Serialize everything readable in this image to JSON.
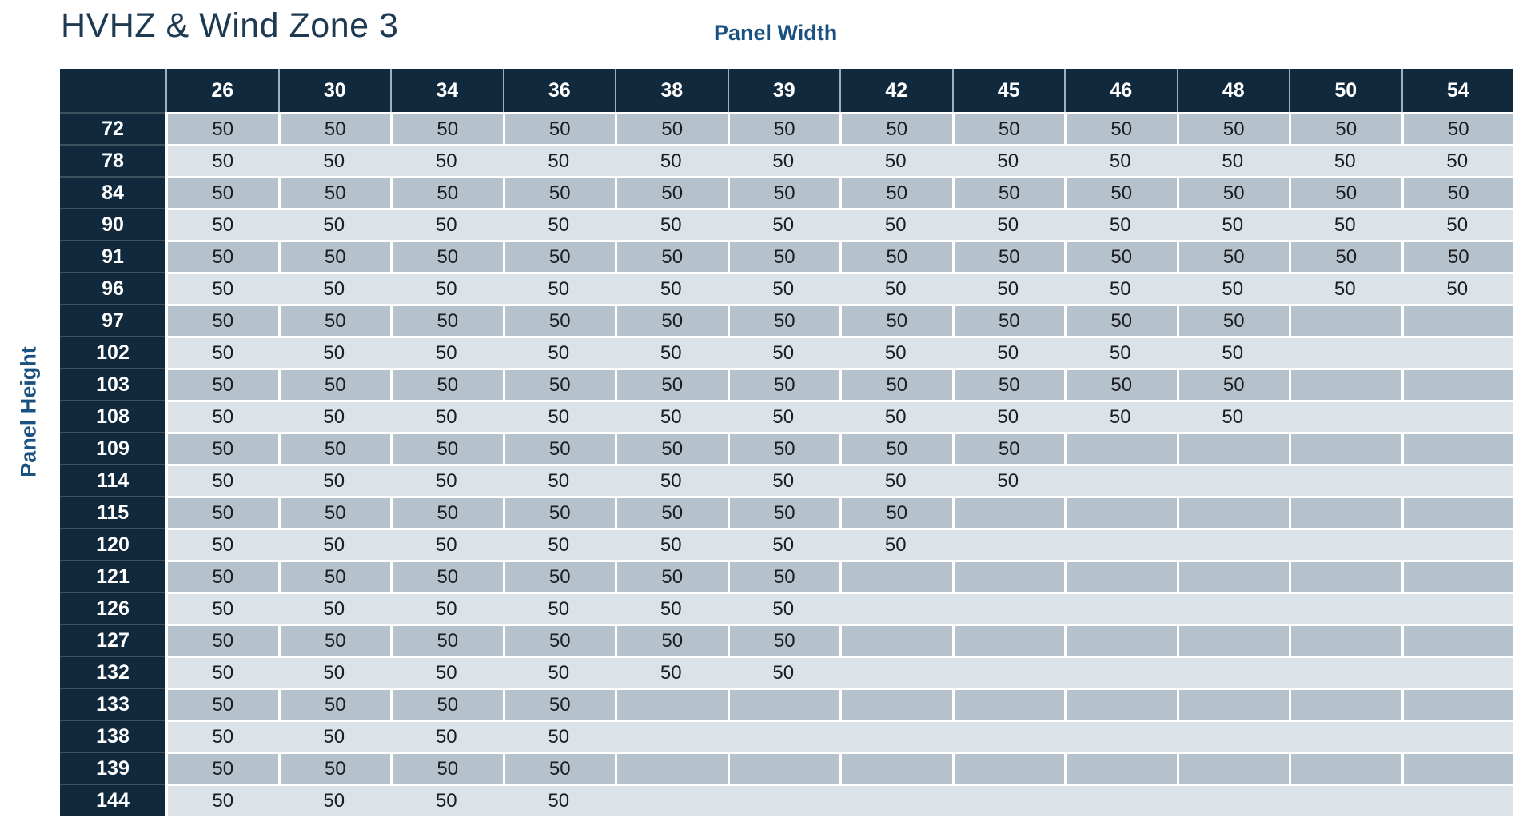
{
  "page": {
    "title": "HVHZ & Wind Zone 3",
    "column_axis_label": "Panel Width",
    "row_axis_label": "Panel Height"
  },
  "colors": {
    "header_navy": "#10293c",
    "row_stripe_dark": "#b5c2cc",
    "row_stripe_light": "#dbe2e8",
    "separator_white": "#ffffff",
    "header_separator": "#9db0bc",
    "row_header_separator": "#3f5260",
    "title_text": "#1d3a52",
    "axis_label_text": "#195180",
    "cell_text": "#1b1d1f"
  },
  "table": {
    "column_headers": [
      "26",
      "30",
      "34",
      "36",
      "38",
      "39",
      "42",
      "45",
      "46",
      "48",
      "50",
      "54"
    ],
    "rows": [
      {
        "height": "72",
        "values": [
          "50",
          "50",
          "50",
          "50",
          "50",
          "50",
          "50",
          "50",
          "50",
          "50",
          "50",
          "50"
        ]
      },
      {
        "height": "78",
        "values": [
          "50",
          "50",
          "50",
          "50",
          "50",
          "50",
          "50",
          "50",
          "50",
          "50",
          "50",
          "50"
        ]
      },
      {
        "height": "84",
        "values": [
          "50",
          "50",
          "50",
          "50",
          "50",
          "50",
          "50",
          "50",
          "50",
          "50",
          "50",
          "50"
        ]
      },
      {
        "height": "90",
        "values": [
          "50",
          "50",
          "50",
          "50",
          "50",
          "50",
          "50",
          "50",
          "50",
          "50",
          "50",
          "50"
        ]
      },
      {
        "height": "91",
        "values": [
          "50",
          "50",
          "50",
          "50",
          "50",
          "50",
          "50",
          "50",
          "50",
          "50",
          "50",
          "50"
        ]
      },
      {
        "height": "96",
        "values": [
          "50",
          "50",
          "50",
          "50",
          "50",
          "50",
          "50",
          "50",
          "50",
          "50",
          "50",
          "50"
        ]
      },
      {
        "height": "97",
        "values": [
          "50",
          "50",
          "50",
          "50",
          "50",
          "50",
          "50",
          "50",
          "50",
          "50",
          "",
          ""
        ]
      },
      {
        "height": "102",
        "values": [
          "50",
          "50",
          "50",
          "50",
          "50",
          "50",
          "50",
          "50",
          "50",
          "50",
          "",
          ""
        ]
      },
      {
        "height": "103",
        "values": [
          "50",
          "50",
          "50",
          "50",
          "50",
          "50",
          "50",
          "50",
          "50",
          "50",
          "",
          ""
        ]
      },
      {
        "height": "108",
        "values": [
          "50",
          "50",
          "50",
          "50",
          "50",
          "50",
          "50",
          "50",
          "50",
          "50",
          "",
          ""
        ]
      },
      {
        "height": "109",
        "values": [
          "50",
          "50",
          "50",
          "50",
          "50",
          "50",
          "50",
          "50",
          "",
          "",
          "",
          ""
        ]
      },
      {
        "height": "114",
        "values": [
          "50",
          "50",
          "50",
          "50",
          "50",
          "50",
          "50",
          "50",
          "",
          "",
          "",
          ""
        ]
      },
      {
        "height": "115",
        "values": [
          "50",
          "50",
          "50",
          "50",
          "50",
          "50",
          "50",
          "",
          "",
          "",
          "",
          ""
        ]
      },
      {
        "height": "120",
        "values": [
          "50",
          "50",
          "50",
          "50",
          "50",
          "50",
          "50",
          "",
          "",
          "",
          "",
          ""
        ]
      },
      {
        "height": "121",
        "values": [
          "50",
          "50",
          "50",
          "50",
          "50",
          "50",
          "",
          "",
          "",
          "",
          "",
          ""
        ]
      },
      {
        "height": "126",
        "values": [
          "50",
          "50",
          "50",
          "50",
          "50",
          "50",
          "",
          "",
          "",
          "",
          "",
          ""
        ]
      },
      {
        "height": "127",
        "values": [
          "50",
          "50",
          "50",
          "50",
          "50",
          "50",
          "",
          "",
          "",
          "",
          "",
          ""
        ]
      },
      {
        "height": "132",
        "values": [
          "50",
          "50",
          "50",
          "50",
          "50",
          "50",
          "",
          "",
          "",
          "",
          "",
          ""
        ]
      },
      {
        "height": "133",
        "values": [
          "50",
          "50",
          "50",
          "50",
          "",
          "",
          "",
          "",
          "",
          "",
          "",
          ""
        ]
      },
      {
        "height": "138",
        "values": [
          "50",
          "50",
          "50",
          "50",
          "",
          "",
          "",
          "",
          "",
          "",
          "",
          ""
        ]
      },
      {
        "height": "139",
        "values": [
          "50",
          "50",
          "50",
          "50",
          "",
          "",
          "",
          "",
          "",
          "",
          "",
          ""
        ]
      },
      {
        "height": "144",
        "values": [
          "50",
          "50",
          "50",
          "50",
          "",
          "",
          "",
          "",
          "",
          "",
          "",
          ""
        ]
      }
    ]
  }
}
